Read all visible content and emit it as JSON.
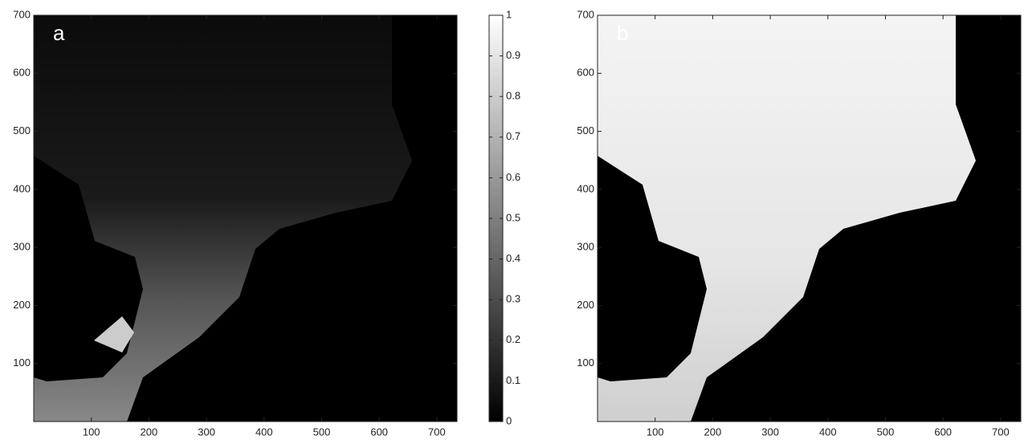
{
  "chart_data": [
    {
      "type": "heatmap",
      "label": "a",
      "xlim": [
        0,
        735
      ],
      "ylim": [
        0,
        700
      ],
      "xticks": [
        100,
        200,
        300,
        400,
        500,
        600,
        700
      ],
      "yticks": [
        100,
        200,
        300,
        400,
        500,
        600,
        700
      ]
    },
    {
      "type": "colorbar",
      "colors": [
        "#000000",
        "#ffffff"
      ],
      "ylim": [
        0,
        1
      ],
      "yticks": [
        0,
        0.1,
        0.2,
        0.3,
        0.4,
        0.5,
        0.6,
        0.7,
        0.8,
        0.9,
        1
      ]
    },
    {
      "type": "heatmap",
      "label": "b",
      "xlim": [
        0,
        735
      ],
      "ylim": [
        0,
        700
      ],
      "xticks": [
        100,
        200,
        300,
        400,
        500,
        600,
        700
      ],
      "yticks": [
        100,
        200,
        300,
        400,
        500,
        600,
        700
      ]
    }
  ]
}
